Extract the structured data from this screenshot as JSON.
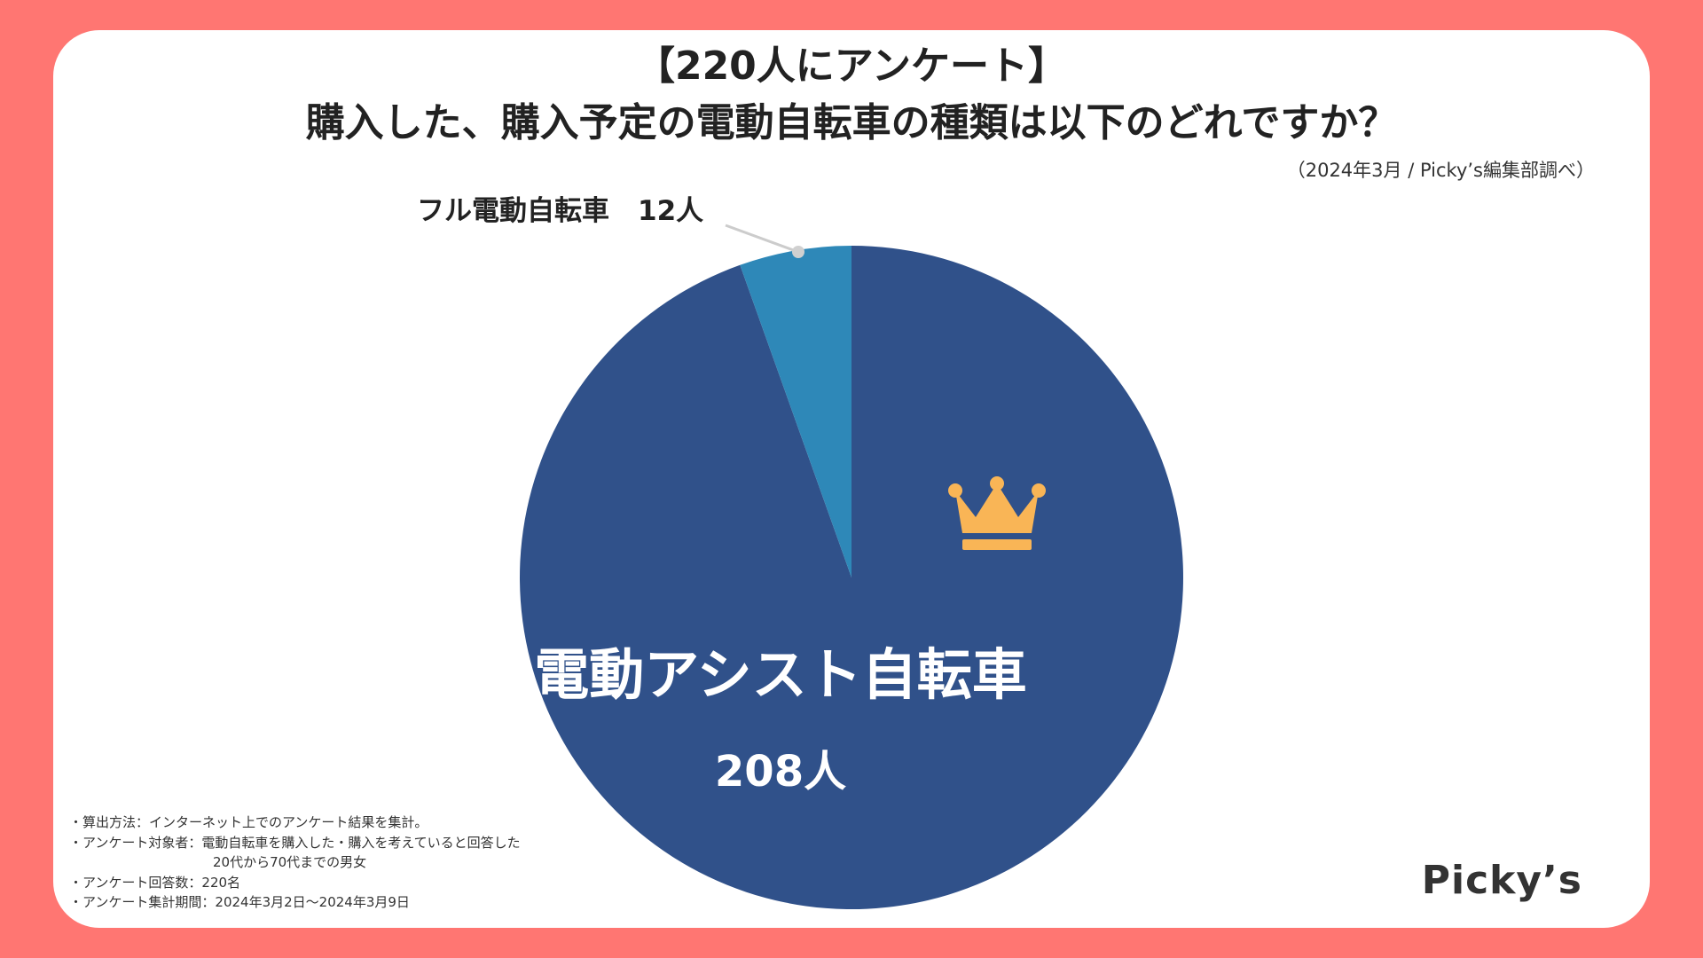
{
  "header": {
    "title_line1": "【220人にアンケート】",
    "title_line2": "購入した、購入予定の電動自転車の種類は以下のどれですか？",
    "source": "（2024年3月 / Picky’s編集部調べ）"
  },
  "chart_data": {
    "type": "pie",
    "title": "【220人にアンケート】購入した、購入予定の電動自転車の種類は以下のどれですか？",
    "unit": "人",
    "total": 220,
    "slices": [
      {
        "label": "電動アシスト自転車",
        "value": 208,
        "value_label": "208人",
        "color": "#30518A",
        "top_answer": true
      },
      {
        "label": "フル電動自転車",
        "value": 12,
        "value_label": "12人",
        "color": "#2E88B8"
      }
    ],
    "legend": "none",
    "start_angle": "top, clockwise"
  },
  "icons": {
    "top_answer_icon": "crown-icon",
    "crown_color": "#F9B556"
  },
  "notes": [
    "・算出方法：インターネット上でのアンケート結果を集計。",
    "・アンケート対象者：電動自転車を購入した・購入を考えていると回答した",
    "20代から70代までの男女",
    "・アンケート回答数：220名",
    "・アンケート集計期間：2024年3月2日〜2024年3月9日"
  ],
  "brand": {
    "logo_text": "Picky’s",
    "background": "#FF7672"
  }
}
